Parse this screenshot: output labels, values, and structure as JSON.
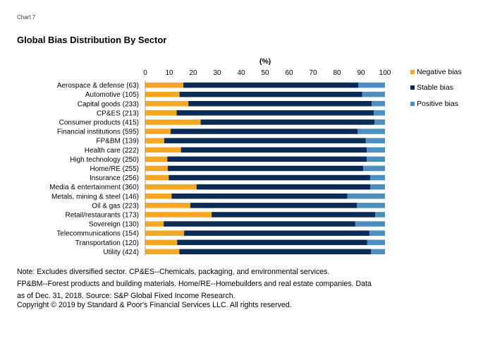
{
  "header": {
    "chart_label": "Chart 7",
    "title": "Global Bias Distribution By Sector"
  },
  "notes": {
    "line1": "Note: Excludes diversified sector. CP&ES--Chemicals, packaging, and environmental services.",
    "line2": "FP&BM--Forest products and building materials. Home/RE--Homebuilders and real estate companies. Data",
    "line3": "as of Dec. 31, 2018. Source: S&P Global Fixed Income Research.",
    "copyright": "Copyright © 2019 by Standard & Poor's Financial Services LLC. All rights reserved."
  },
  "colors": {
    "negative": "#F5A623",
    "stable": "#0B2A55",
    "positive": "#4B8FC1"
  },
  "chart_data": {
    "type": "bar",
    "orientation": "horizontal",
    "stacked": true,
    "xlabel": "(%)",
    "xlim": [
      0,
      100
    ],
    "x_ticks": [
      0,
      10,
      20,
      30,
      40,
      50,
      60,
      70,
      80,
      90,
      100
    ],
    "grid": false,
    "legend_position": "right",
    "categories": [
      "Aerospace & defense (63)",
      "Automotive (105)",
      "Capital goods (233)",
      "CP&ES (213)",
      "Consumer products (415)",
      "Financial institutions (595)",
      "FP&BM (139)",
      "Health care (222)",
      "High technology (250)",
      "Home/RE (255)",
      "Insurance (256)",
      "Media & entertainment (360)",
      "Metals, mining & steel (146)",
      "Oil & gas (223)",
      "Retail/restaurants (173)",
      "Sovereign (130)",
      "Telecommunications (154)",
      "Transportation (120)",
      "Utility (424)"
    ],
    "series": [
      {
        "name": "Negative bias",
        "color": "#F5A623",
        "values": [
          15.9,
          14.3,
          18.0,
          13.1,
          23.1,
          10.6,
          7.9,
          14.9,
          9.2,
          9.4,
          9.8,
          21.4,
          11.0,
          18.8,
          27.7,
          7.7,
          16.2,
          13.3,
          14.2
        ]
      },
      {
        "name": "Stable bias",
        "color": "#0B2A55",
        "values": [
          73.0,
          76.2,
          76.4,
          82.2,
          72.5,
          78.0,
          84.1,
          77.5,
          83.2,
          81.5,
          84.0,
          72.5,
          73.3,
          69.5,
          68.2,
          79.9,
          77.3,
          79.2,
          80.0
        ]
      },
      {
        "name": "Positive bias",
        "color": "#4B8FC1",
        "values": [
          11.1,
          9.5,
          5.6,
          4.7,
          4.4,
          11.4,
          8.0,
          7.6,
          7.6,
          9.1,
          6.2,
          6.1,
          15.7,
          11.7,
          4.1,
          12.4,
          6.5,
          7.5,
          5.8
        ]
      }
    ]
  }
}
